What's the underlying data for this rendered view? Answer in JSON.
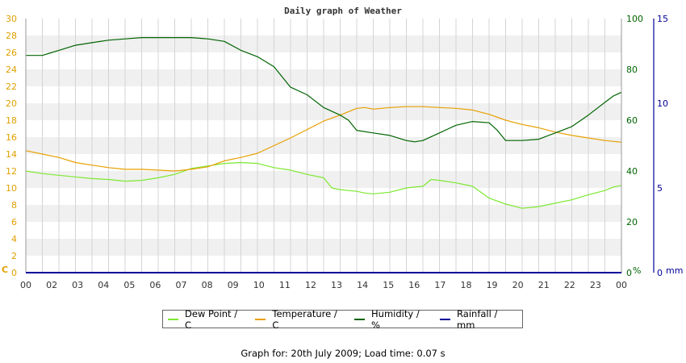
{
  "chart_data": {
    "type": "line",
    "title": "Daily graph of Weather",
    "x_ticks": [
      "00",
      "02",
      "03",
      "04",
      "05",
      "06",
      "07",
      "08",
      "09",
      "10",
      "11",
      "12",
      "13",
      "14",
      "15",
      "16",
      "17",
      "18",
      "19",
      "20",
      "21",
      "22",
      "23",
      "00"
    ],
    "axes": {
      "left": {
        "unit": "C",
        "range": [
          0,
          30
        ],
        "ticks": [
          0,
          2,
          4,
          6,
          8,
          10,
          12,
          14,
          16,
          18,
          20,
          22,
          24,
          26,
          28,
          30
        ],
        "color": "#e0a000"
      },
      "right1": {
        "unit": "%",
        "range": [
          0,
          100
        ],
        "ticks": [
          0,
          20,
          40,
          60,
          80,
          100
        ],
        "color": "#006400"
      },
      "right2": {
        "unit": "mm",
        "range": [
          0,
          15
        ],
        "ticks": [
          0,
          5,
          10,
          15
        ],
        "color": "#000099"
      }
    },
    "series": [
      {
        "name": "Dew Point / C",
        "axis": "left",
        "color": "#7de830",
        "points": [
          [
            0,
            12.0
          ],
          [
            1,
            11.7
          ],
          [
            2,
            11.5
          ],
          [
            3,
            11.3
          ],
          [
            4,
            11.1
          ],
          [
            5,
            11.0
          ],
          [
            6,
            10.8
          ],
          [
            7,
            10.9
          ],
          [
            8,
            11.2
          ],
          [
            9,
            11.6
          ],
          [
            10,
            12.3
          ],
          [
            11,
            12.6
          ],
          [
            12,
            12.9
          ],
          [
            13,
            13.0
          ],
          [
            14,
            12.9
          ],
          [
            15,
            12.4
          ],
          [
            16,
            12.1
          ],
          [
            17,
            11.6
          ],
          [
            18,
            11.2
          ],
          [
            18.5,
            10.0
          ],
          [
            19,
            9.8
          ],
          [
            20,
            9.6
          ],
          [
            20.5,
            9.4
          ],
          [
            21,
            9.3
          ],
          [
            22,
            9.5
          ],
          [
            23,
            10.0
          ],
          [
            24,
            10.2
          ],
          [
            24.5,
            11.0
          ],
          [
            25,
            10.9
          ],
          [
            26,
            10.6
          ],
          [
            27,
            10.2
          ],
          [
            28,
            8.8
          ],
          [
            29,
            8.1
          ],
          [
            30,
            7.6
          ],
          [
            31,
            7.8
          ],
          [
            32,
            8.2
          ],
          [
            33,
            8.6
          ],
          [
            34,
            9.2
          ],
          [
            35,
            9.7
          ],
          [
            35.5,
            10.1
          ],
          [
            36,
            10.3
          ]
        ]
      },
      {
        "name": "Temperature / C",
        "axis": "left",
        "color": "#e8a000",
        "points": [
          [
            0,
            14.4
          ],
          [
            1,
            14.0
          ],
          [
            2,
            13.6
          ],
          [
            3,
            13.0
          ],
          [
            4,
            12.7
          ],
          [
            5,
            12.4
          ],
          [
            6,
            12.2
          ],
          [
            7,
            12.2
          ],
          [
            8,
            12.1
          ],
          [
            9,
            12.0
          ],
          [
            10,
            12.2
          ],
          [
            11,
            12.5
          ],
          [
            12,
            13.2
          ],
          [
            13,
            13.6
          ],
          [
            14,
            14.1
          ],
          [
            15,
            15.0
          ],
          [
            16,
            15.9
          ],
          [
            17,
            16.9
          ],
          [
            18,
            17.9
          ],
          [
            19,
            18.6
          ],
          [
            20,
            19.4
          ],
          [
            20.5,
            19.5
          ],
          [
            21,
            19.3
          ],
          [
            22,
            19.5
          ],
          [
            23,
            19.6
          ],
          [
            24,
            19.6
          ],
          [
            25,
            19.5
          ],
          [
            26,
            19.4
          ],
          [
            27,
            19.2
          ],
          [
            28,
            18.7
          ],
          [
            29,
            18.0
          ],
          [
            30,
            17.5
          ],
          [
            31,
            17.1
          ],
          [
            32,
            16.6
          ],
          [
            33,
            16.2
          ],
          [
            34,
            15.9
          ],
          [
            35,
            15.6
          ],
          [
            36,
            15.4
          ]
        ]
      },
      {
        "name": "Humidity / %",
        "axis": "right1",
        "color": "#006400",
        "points": [
          [
            0,
            85.5
          ],
          [
            1,
            85.5
          ],
          [
            1.5,
            86.5
          ],
          [
            2,
            87.5
          ],
          [
            3,
            89.5
          ],
          [
            4,
            90.5
          ],
          [
            5,
            91.5
          ],
          [
            6,
            92
          ],
          [
            7,
            92.5
          ],
          [
            8,
            92.5
          ],
          [
            9,
            92.5
          ],
          [
            10,
            92.5
          ],
          [
            11,
            92
          ],
          [
            12,
            91
          ],
          [
            13,
            87.5
          ],
          [
            14,
            85
          ],
          [
            15,
            81
          ],
          [
            16,
            73
          ],
          [
            17,
            70
          ],
          [
            18,
            65
          ],
          [
            19,
            62
          ],
          [
            19.5,
            60
          ],
          [
            20,
            56
          ],
          [
            21,
            55
          ],
          [
            22,
            54
          ],
          [
            23,
            52
          ],
          [
            23.5,
            51.5
          ],
          [
            24,
            52
          ],
          [
            25,
            55
          ],
          [
            25.5,
            56.5
          ],
          [
            26,
            58
          ],
          [
            27,
            59.5
          ],
          [
            28,
            59
          ],
          [
            28.5,
            56
          ],
          [
            29,
            52
          ],
          [
            30,
            52
          ],
          [
            31,
            52.5
          ],
          [
            32,
            55
          ],
          [
            33,
            57.5
          ],
          [
            34,
            62
          ],
          [
            35,
            67
          ],
          [
            35.5,
            69.5
          ],
          [
            36,
            71
          ]
        ]
      },
      {
        "name": "Rainfall / mm",
        "axis": "right2",
        "color": "#000099",
        "points": [
          [
            0,
            0
          ],
          [
            36,
            0
          ]
        ]
      }
    ],
    "grid": true,
    "legend_position": "bottom"
  },
  "footer": "Graph for: 20th July 2009; Load time: 0.07 s"
}
